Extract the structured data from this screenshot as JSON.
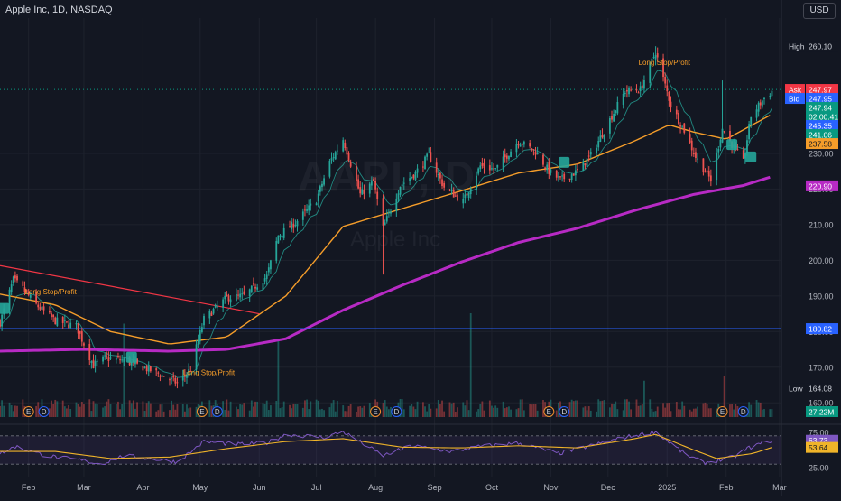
{
  "header": {
    "title": "Apple Inc, 1D, NASDAQ",
    "currency": "USD"
  },
  "watermark": {
    "symbol": "AAPL, D",
    "name": "Apple Inc"
  },
  "colors": {
    "background": "#131722",
    "up_candle": "#26a69a",
    "down_candle": "#ef5350",
    "ema_short": "#26a69a",
    "ma_mid": "#f59d2a",
    "ma_long": "#b72ac4",
    "trendline": "#f23645",
    "hline": "#2962ff",
    "rsi": "#7e57c2",
    "rsi_ma": "#f0b429"
  },
  "price_labels": [
    {
      "label": "High",
      "value": "260.10",
      "bg": "#131722",
      "fg": "#d1d4dc"
    },
    {
      "label": "Ask",
      "value": "247.97",
      "bg": "#f23645",
      "fg": "#ffffff"
    },
    {
      "label": "Bid",
      "value": "247.95",
      "bg": "#2962ff",
      "fg": "#ffffff"
    },
    {
      "label": "",
      "value": "247.94",
      "bg": "#089981",
      "fg": "#ffffff"
    },
    {
      "label": "",
      "value": "02:00:41",
      "bg": "#089981",
      "fg": "#ffffff"
    },
    {
      "label": "",
      "value": "245.35",
      "bg": "#2962ff",
      "fg": "#ffffff"
    },
    {
      "label": "",
      "value": "241.06",
      "bg": "#089981",
      "fg": "#ffffff"
    },
    {
      "label": "",
      "value": "237.58",
      "bg": "#f59d2a",
      "fg": "#131722"
    },
    {
      "label": "",
      "value": "220.90",
      "bg": "#b72ac4",
      "fg": "#ffffff"
    },
    {
      "label": "",
      "value": "180.82",
      "bg": "#2962ff",
      "fg": "#ffffff"
    },
    {
      "label": "Low",
      "value": "164.08",
      "bg": "#131722",
      "fg": "#d1d4dc"
    },
    {
      "label": "",
      "value": "27.22M",
      "bg": "#089981",
      "fg": "#ffffff"
    }
  ],
  "annotations": [
    {
      "text": "Long Stop/Profit",
      "x": "2024-01-30",
      "y": 190.5
    },
    {
      "text": "Long Stop/Profit",
      "x": "2024-04-22",
      "y": 167.8
    },
    {
      "text": "Long Stop/Profit",
      "x": "2024-12-17",
      "y": 254.8
    }
  ],
  "chart_data": [
    {
      "type": "candlestick",
      "title": "Apple Inc, 1D, NASDAQ",
      "x_start": "2024-01-17",
      "x_end": "2025-03-02",
      "ylim": [
        156,
        268
      ],
      "y_ticks": [
        160,
        170,
        180,
        190,
        200,
        210,
        220,
        230
      ],
      "y_tick_labels": [
        "160.00",
        "170.00",
        "180.00",
        "190.00",
        "200.00",
        "210.00",
        "220.00",
        "230.00"
      ],
      "x_ticks": [
        {
          "label": "Feb",
          "date": "2024-02-01"
        },
        {
          "label": "Mar",
          "date": "2024-03-01"
        },
        {
          "label": "Apr",
          "date": "2024-04-01"
        },
        {
          "label": "May",
          "date": "2024-05-01"
        },
        {
          "label": "Jun",
          "date": "2024-06-01"
        },
        {
          "label": "Jul",
          "date": "2024-07-01"
        },
        {
          "label": "Aug",
          "date": "2024-08-01"
        },
        {
          "label": "Sep",
          "date": "2024-09-01"
        },
        {
          "label": "Oct",
          "date": "2024-10-01"
        },
        {
          "label": "Nov",
          "date": "2024-11-01"
        },
        {
          "label": "Dec",
          "date": "2024-12-01"
        },
        {
          "label": "2025",
          "date": "2025-01-01"
        },
        {
          "label": "Feb",
          "date": "2025-02-01"
        },
        {
          "label": "Mar",
          "date": "2025-03-01"
        }
      ],
      "close_anchors": [
        [
          "2024-01-17",
          182.5
        ],
        [
          "2024-01-24",
          194.5
        ],
        [
          "2024-01-29",
          192
        ],
        [
          "2024-02-05",
          187.5
        ],
        [
          "2024-02-15",
          183
        ],
        [
          "2024-02-26",
          181.5
        ],
        [
          "2024-03-06",
          170.5
        ],
        [
          "2024-03-12",
          172.5
        ],
        [
          "2024-03-21",
          172
        ],
        [
          "2024-04-01",
          170
        ],
        [
          "2024-04-10",
          168
        ],
        [
          "2024-04-19",
          165.5
        ],
        [
          "2024-04-26",
          169.5
        ],
        [
          "2024-05-03",
          183.5
        ],
        [
          "2024-05-15",
          189.5
        ],
        [
          "2024-05-24",
          190
        ],
        [
          "2024-06-05",
          195.5
        ],
        [
          "2024-06-11",
          207
        ],
        [
          "2024-06-20",
          210.5
        ],
        [
          "2024-07-01",
          217
        ],
        [
          "2024-07-08",
          227.5
        ],
        [
          "2024-07-15",
          234
        ],
        [
          "2024-07-24",
          218.5
        ],
        [
          "2024-07-31",
          222
        ],
        [
          "2024-08-05",
          209
        ],
        [
          "2024-08-14",
          221
        ],
        [
          "2024-08-22",
          224.5
        ],
        [
          "2024-08-29",
          229.5
        ],
        [
          "2024-09-06",
          220.5
        ],
        [
          "2024-09-16",
          216.5
        ],
        [
          "2024-09-25",
          226.5
        ],
        [
          "2024-10-03",
          225.5
        ],
        [
          "2024-10-15",
          233.5
        ],
        [
          "2024-10-24",
          230.5
        ],
        [
          "2024-10-31",
          225
        ],
        [
          "2024-11-06",
          222.5
        ],
        [
          "2024-11-15",
          225
        ],
        [
          "2024-11-22",
          229.5
        ],
        [
          "2024-12-02",
          239.5
        ],
        [
          "2024-12-10",
          247.5
        ],
        [
          "2024-12-18",
          248
        ],
        [
          "2024-12-26",
          258.5
        ],
        [
          "2025-01-03",
          243.5
        ],
        [
          "2025-01-10",
          236.5
        ],
        [
          "2025-01-16",
          229
        ],
        [
          "2025-01-24",
          222.5
        ],
        [
          "2025-01-30",
          237
        ],
        [
          "2025-02-04",
          232.5
        ],
        [
          "2025-02-10",
          227.5
        ],
        [
          "2025-02-14",
          240.5
        ],
        [
          "2025-02-21",
          245.5
        ],
        [
          "2025-02-25",
          247.5
        ]
      ],
      "series": [
        {
          "name": "",
          "type": "line",
          "color": "#f59d2a",
          "points": [
            [
              "2024-01-17",
              190.5
            ],
            [
              "2024-02-15",
              187.5
            ],
            [
              "2024-03-15",
              180
            ],
            [
              "2024-04-15",
              176.5
            ],
            [
              "2024-05-15",
              178.5
            ],
            [
              "2024-06-15",
              190
            ],
            [
              "2024-07-15",
              209.5
            ],
            [
              "2024-08-15",
              214.5
            ],
            [
              "2024-09-15",
              219.5
            ],
            [
              "2024-10-15",
              224.5
            ],
            [
              "2024-11-15",
              227
            ],
            [
              "2024-12-15",
              233.5
            ],
            [
              "2025-01-02",
              238
            ],
            [
              "2025-01-15",
              236
            ],
            [
              "2025-02-01",
              234
            ],
            [
              "2025-02-25",
              241
            ]
          ]
        },
        {
          "name": "",
          "type": "line",
          "color": "#b72ac4",
          "points": [
            [
              "2024-01-17",
              174.5
            ],
            [
              "2024-03-01",
              175
            ],
            [
              "2024-04-15",
              174.5
            ],
            [
              "2024-05-15",
              175
            ],
            [
              "2024-06-15",
              178
            ],
            [
              "2024-07-15",
              186
            ],
            [
              "2024-08-15",
              193
            ],
            [
              "2024-09-15",
              199.5
            ],
            [
              "2024-10-15",
              205
            ],
            [
              "2024-11-15",
              209
            ],
            [
              "2024-12-15",
              214
            ],
            [
              "2025-01-15",
              218.5
            ],
            [
              "2025-02-10",
              221
            ],
            [
              "2025-02-25",
              223.5
            ]
          ]
        },
        {
          "name": "",
          "type": "line",
          "color": "#2962ff",
          "value": 180.82
        },
        {
          "name": "",
          "type": "segment",
          "color": "#f23645",
          "points": [
            [
              "2024-01-17",
              198.5
            ],
            [
              "2024-06-01",
              185
            ]
          ]
        }
      ],
      "markers": [
        {
          "date": "2024-01-19",
          "price": 186.5
        },
        {
          "date": "2024-03-26",
          "price": 172.8
        },
        {
          "date": "2024-11-08",
          "price": 227.5
        },
        {
          "date": "2025-02-04",
          "price": 232.5
        },
        {
          "date": "2025-02-14",
          "price": 229
        }
      ],
      "volume_spikes": [
        [
          "2024-03-22",
          0.9
        ],
        [
          "2024-06-11",
          0.75
        ],
        [
          "2024-09-20",
          1.0
        ],
        [
          "2024-12-20",
          0.35
        ],
        [
          "2025-01-31",
          0.4
        ]
      ],
      "event_icons": [
        {
          "label": "E",
          "date": "2024-02-01"
        },
        {
          "label": "D",
          "date": "2024-02-09"
        },
        {
          "label": "E",
          "date": "2024-05-02"
        },
        {
          "label": "D",
          "date": "2024-05-10"
        },
        {
          "label": "E",
          "date": "2024-08-01"
        },
        {
          "label": "D",
          "date": "2024-08-12"
        },
        {
          "label": "E",
          "date": "2024-10-31"
        },
        {
          "label": "D",
          "date": "2024-11-08"
        },
        {
          "label": "E",
          "date": "2025-01-30"
        },
        {
          "label": "D",
          "date": "2025-02-10"
        }
      ]
    },
    {
      "type": "line",
      "title": "RSI",
      "ylim": [
        20,
        80
      ],
      "y_ticks": [
        25,
        75
      ],
      "y_tick_labels": [
        "25.00",
        "75.00"
      ],
      "bands": [
        30,
        50,
        70
      ],
      "value_labels": [
        {
          "value": "63.73",
          "bg": "#7e57c2"
        },
        {
          "value": "53.64",
          "bg": "#f0b429"
        }
      ],
      "rsi_anchors": [
        [
          "2024-01-17",
          45
        ],
        [
          "2024-01-25",
          55
        ],
        [
          "2024-02-10",
          42
        ],
        [
          "2024-03-01",
          35
        ],
        [
          "2024-03-10",
          30
        ],
        [
          "2024-03-22",
          42
        ],
        [
          "2024-04-05",
          38
        ],
        [
          "2024-04-19",
          33
        ],
        [
          "2024-05-03",
          62
        ],
        [
          "2024-05-20",
          58
        ],
        [
          "2024-06-05",
          60
        ],
        [
          "2024-06-15",
          72
        ],
        [
          "2024-07-05",
          68
        ],
        [
          "2024-07-15",
          76
        ],
        [
          "2024-08-05",
          42
        ],
        [
          "2024-08-20",
          56
        ],
        [
          "2024-09-10",
          48
        ],
        [
          "2024-09-25",
          55
        ],
        [
          "2024-10-15",
          60
        ],
        [
          "2024-11-05",
          45
        ],
        [
          "2024-11-25",
          58
        ],
        [
          "2024-12-10",
          68
        ],
        [
          "2024-12-26",
          76
        ],
        [
          "2025-01-10",
          45
        ],
        [
          "2025-01-20",
          32
        ],
        [
          "2025-01-27",
          35
        ],
        [
          "2025-02-05",
          40
        ],
        [
          "2025-02-12",
          52
        ],
        [
          "2025-02-20",
          60
        ],
        [
          "2025-02-25",
          63.73
        ]
      ],
      "rsi_ma_anchors": [
        [
          "2024-01-17",
          48
        ],
        [
          "2024-02-15",
          48
        ],
        [
          "2024-03-15",
          38
        ],
        [
          "2024-04-15",
          40
        ],
        [
          "2024-05-15",
          52
        ],
        [
          "2024-06-15",
          62
        ],
        [
          "2024-07-15",
          66
        ],
        [
          "2024-08-15",
          54
        ],
        [
          "2024-09-15",
          53
        ],
        [
          "2024-10-15",
          56
        ],
        [
          "2024-11-15",
          53
        ],
        [
          "2024-12-15",
          66
        ],
        [
          "2024-12-26",
          72
        ],
        [
          "2025-01-15",
          50
        ],
        [
          "2025-01-27",
          38
        ],
        [
          "2025-02-15",
          45
        ],
        [
          "2025-02-25",
          53.64
        ]
      ]
    }
  ]
}
